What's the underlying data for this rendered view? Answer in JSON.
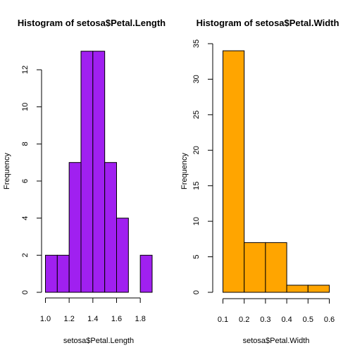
{
  "chart_data": [
    {
      "type": "bar",
      "title": "Histogram of setosa$Petal.Length",
      "xlabel": "setosa$Petal.Length",
      "ylabel": "Frequency",
      "bins": [
        {
          "from": 1.0,
          "to": 1.1,
          "count": 2
        },
        {
          "from": 1.1,
          "to": 1.2,
          "count": 2
        },
        {
          "from": 1.2,
          "to": 1.3,
          "count": 7
        },
        {
          "from": 1.3,
          "to": 1.4,
          "count": 13
        },
        {
          "from": 1.4,
          "to": 1.5,
          "count": 13
        },
        {
          "from": 1.5,
          "to": 1.6,
          "count": 7
        },
        {
          "from": 1.6,
          "to": 1.7,
          "count": 4
        },
        {
          "from": 1.7,
          "to": 1.8,
          "count": 0
        },
        {
          "from": 1.8,
          "to": 1.9,
          "count": 2
        }
      ],
      "xlim": [
        1.0,
        1.9
      ],
      "ylim": [
        0,
        13
      ],
      "xticks": [
        1.0,
        1.2,
        1.4,
        1.6,
        1.8
      ],
      "xtick_labels": [
        "1.0",
        "1.2",
        "1.4",
        "1.6",
        "1.8"
      ],
      "yticks": [
        0,
        2,
        4,
        6,
        8,
        10,
        12
      ],
      "ytick_labels": [
        "0",
        "2",
        "4",
        "6",
        "8",
        "10",
        "12"
      ],
      "color": "#a020f0",
      "grid": false
    },
    {
      "type": "bar",
      "title": "Histogram of setosa$Petal.Width",
      "xlabel": "setosa$Petal.Width",
      "ylabel": "Frequency",
      "bins": [
        {
          "from": 0.1,
          "to": 0.2,
          "count": 34
        },
        {
          "from": 0.2,
          "to": 0.3,
          "count": 7
        },
        {
          "from": 0.3,
          "to": 0.4,
          "count": 7
        },
        {
          "from": 0.4,
          "to": 0.5,
          "count": 1
        },
        {
          "from": 0.5,
          "to": 0.6,
          "count": 1
        }
      ],
      "xlim": [
        0.1,
        0.6
      ],
      "ylim": [
        0,
        35
      ],
      "xticks": [
        0.1,
        0.2,
        0.3,
        0.4,
        0.5,
        0.6
      ],
      "xtick_labels": [
        "0.1",
        "0.2",
        "0.3",
        "0.4",
        "0.5",
        "0.6"
      ],
      "yticks": [
        0,
        5,
        10,
        15,
        20,
        25,
        30,
        35
      ],
      "ytick_labels": [
        "0",
        "5",
        "10",
        "15",
        "20",
        "25",
        "30",
        "35"
      ],
      "color": "#ffa500",
      "grid": false
    }
  ]
}
